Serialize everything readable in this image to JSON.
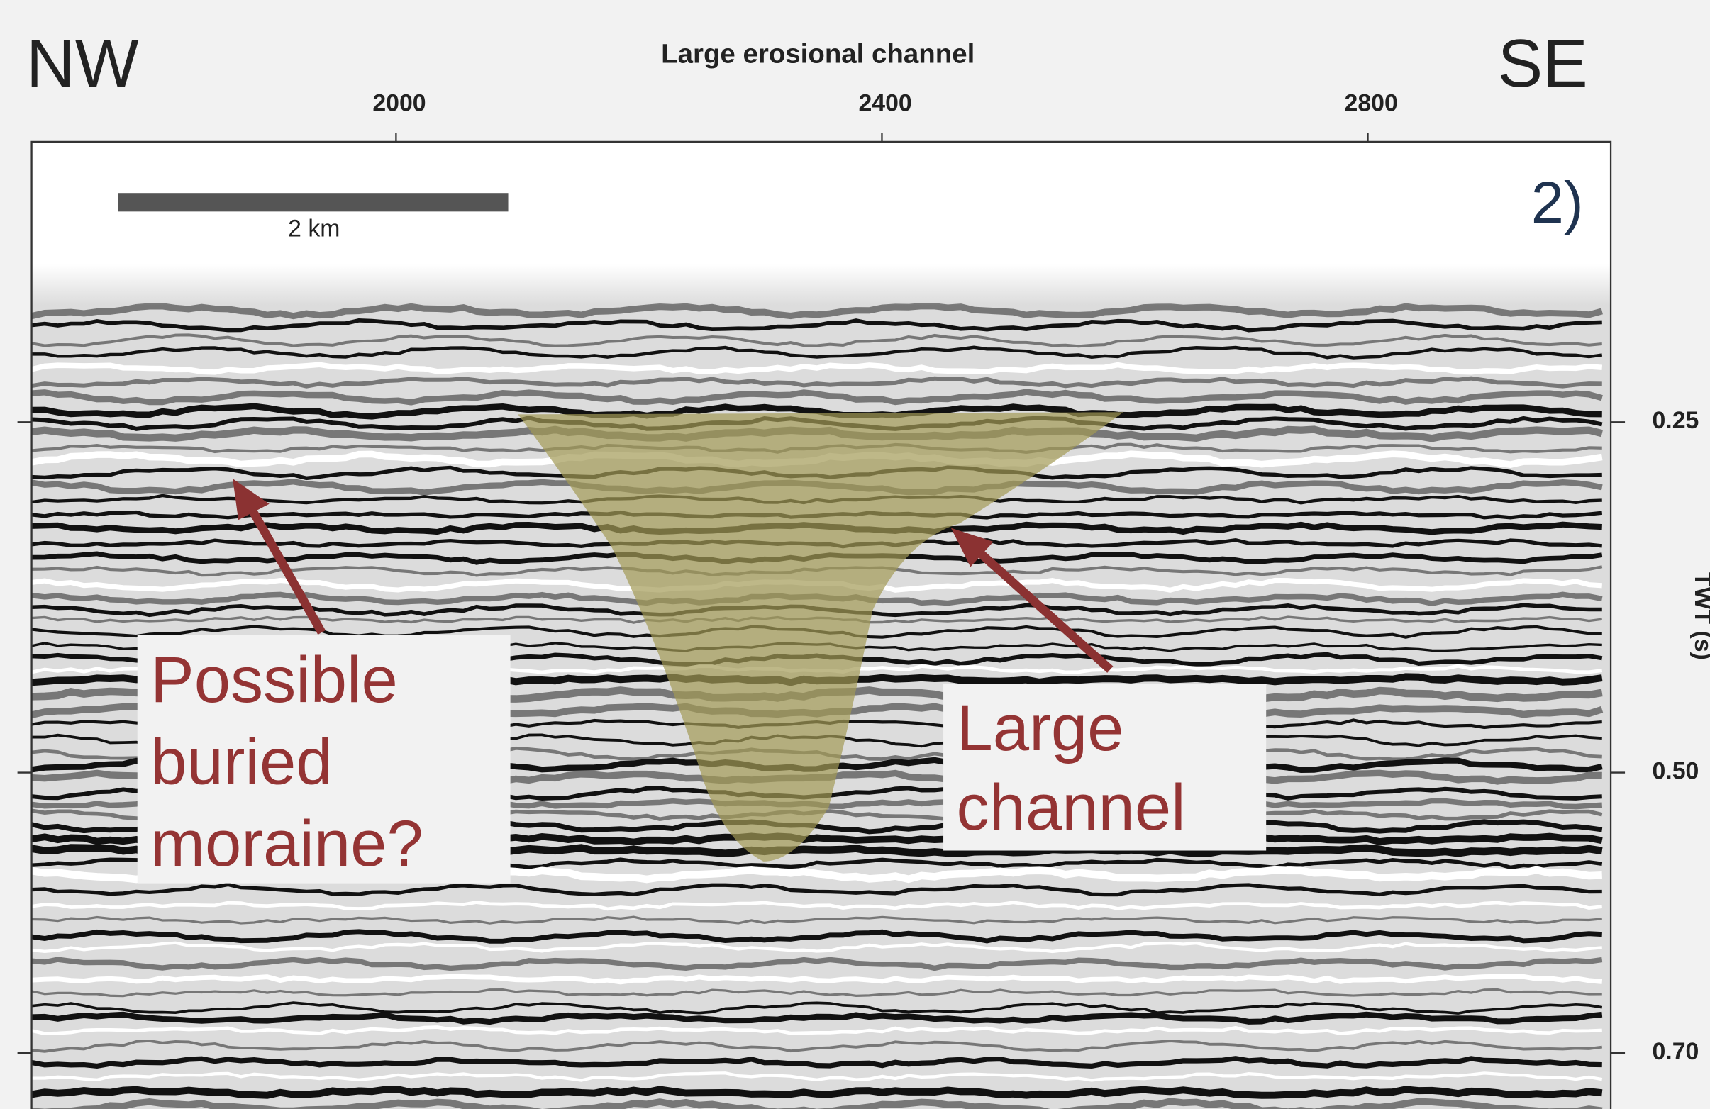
{
  "chart_data": {
    "type": "seismic-section",
    "title": "Large erosional channel",
    "left_label": "NW",
    "right_label": "SE",
    "panel_label": "2)",
    "y_label": "TWT (s)",
    "scale_bar_label": "2 km",
    "xlim": [
      1700,
      3000
    ],
    "xticks": [
      2000,
      2400,
      2800
    ],
    "ylim": [
      0.05,
      0.74
    ],
    "yticks": [
      {
        "value": 0.25,
        "label": "0.25"
      },
      {
        "value": 0.5,
        "label": "0.50"
      },
      {
        "value": 0.7,
        "label": "0.70"
      }
    ],
    "annotations": [
      {
        "lines": [
          "Possible",
          "buried",
          "moraine?"
        ]
      },
      {
        "lines": [
          "Large",
          "channel"
        ]
      }
    ]
  }
}
